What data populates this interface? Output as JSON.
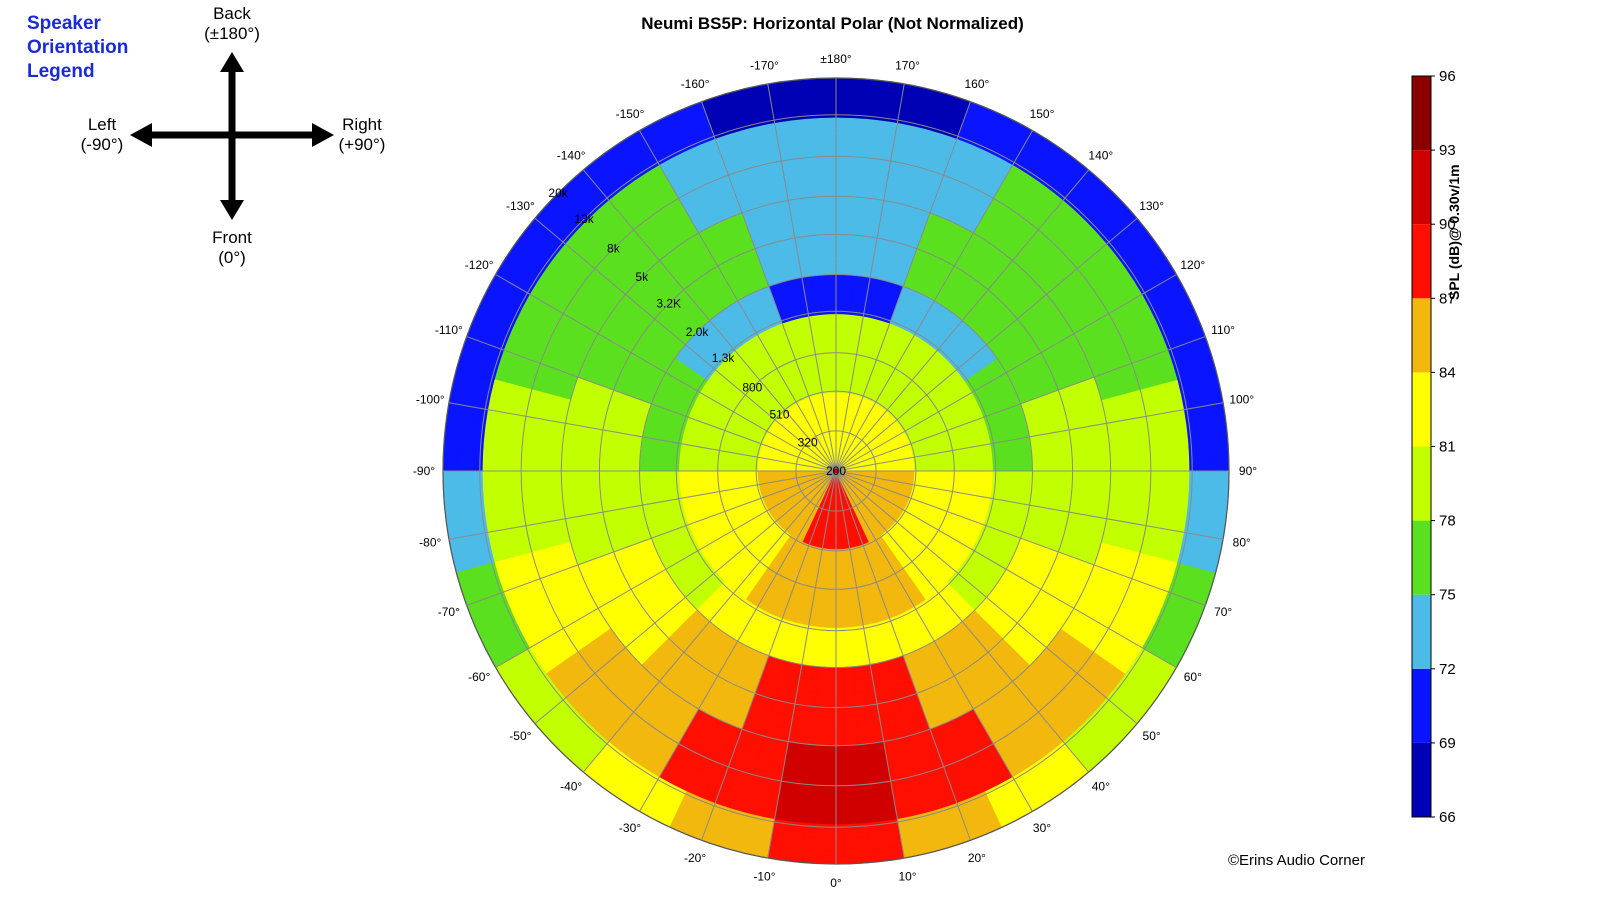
{
  "orientation_legend": {
    "title_lines": [
      "Speaker",
      "Orientation",
      "Legend"
    ],
    "back": [
      "Back",
      "(±180°)"
    ],
    "left": [
      "Left",
      "(-90°)"
    ],
    "right": [
      "Right",
      "(+90°)"
    ],
    "front": [
      "Front",
      "(0°)"
    ]
  },
  "copyright": "©Erins Audio Corner",
  "chart_data": {
    "type": "polar-heatmap",
    "title": "Neumi BS5P: Horizontal Polar (Not Normalized)",
    "angle_labels": [
      "0°",
      "10°",
      "20°",
      "30°",
      "40°",
      "50°",
      "60°",
      "70°",
      "80°",
      "90°",
      "100°",
      "110°",
      "120°",
      "130°",
      "140°",
      "150°",
      "160°",
      "170°",
      "±180°",
      "-170°",
      "-160°",
      "-150°",
      "-140°",
      "-130°",
      "-120°",
      "-110°",
      "-100°",
      "-90°",
      "-80°",
      "-70°",
      "-60°",
      "-50°",
      "-40°",
      "-30°",
      "-20°",
      "-10°"
    ],
    "angles_deg": [
      0,
      10,
      20,
      30,
      40,
      50,
      60,
      70,
      80,
      90,
      100,
      110,
      120,
      130,
      140,
      150,
      160,
      170,
      180,
      -170,
      -160,
      -150,
      -140,
      -130,
      -120,
      -110,
      -100,
      -90,
      -80,
      -70,
      -60,
      -50,
      -40,
      -30,
      -20,
      -10
    ],
    "radial_frequency_labels": [
      "200",
      "320",
      "510",
      "800",
      "1.3k",
      "2.0k",
      "3.2K",
      "5k",
      "8k",
      "13k",
      "20k"
    ],
    "radial_frequencies_hz": [
      200,
      320,
      510,
      800,
      1300,
      2000,
      3200,
      5000,
      8000,
      13000,
      20000
    ],
    "colorbar": {
      "label": "SPL (dB)@ 0.30v/1m",
      "ticks": [
        "66",
        "69",
        "72",
        "75",
        "78",
        "81",
        "84",
        "87",
        "90",
        "93",
        "96"
      ],
      "range": [
        66,
        96
      ],
      "colors": [
        "#0000b4",
        "#0a14ff",
        "#4cbbe8",
        "#5ae01e",
        "#c2ff00",
        "#ffff00",
        "#f2b80d",
        "#ff0f00",
        "#d00000",
        "#8a0000"
      ]
    },
    "spl_bands_approx": [
      {
        "freq_range_hz": [
          200,
          500
        ],
        "front_db": 88,
        "side_db": 84,
        "back_db": 83
      },
      {
        "freq_range_hz": [
          500,
          1300
        ],
        "front_db": 86,
        "side_db": 81,
        "back_db": 80
      },
      {
        "freq_range_hz": [
          1300,
          2000
        ],
        "front_db": 84,
        "side_db": 78,
        "back_db": 70
      },
      {
        "freq_range_hz": [
          2000,
          5000
        ],
        "front_db": 89,
        "side_db": 79,
        "back_db": 74
      },
      {
        "freq_range_hz": [
          5000,
          13000
        ],
        "front_db": 91,
        "side_db": 79,
        "back_db": 73
      },
      {
        "freq_range_hz": [
          13000,
          20000
        ],
        "front_db": 89,
        "side_db": 72,
        "back_db": 68
      }
    ]
  }
}
